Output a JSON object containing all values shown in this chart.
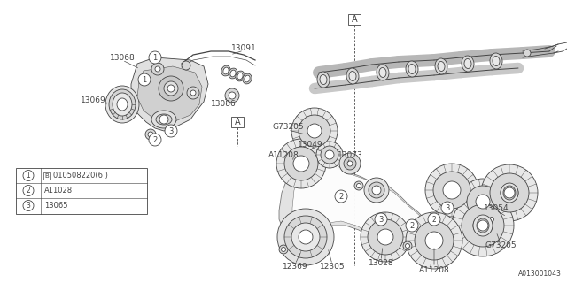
{
  "bg_color": "#ffffff",
  "line_color": "#444444",
  "fig_width": 6.4,
  "fig_height": 3.2,
  "dpi": 100,
  "diagram_ref": "A013001043",
  "parts_legend": [
    {
      "num": "1",
      "part": "B010508220(6 )"
    },
    {
      "num": "2",
      "part": "A11028"
    },
    {
      "num": "3",
      "part": "13065"
    }
  ]
}
